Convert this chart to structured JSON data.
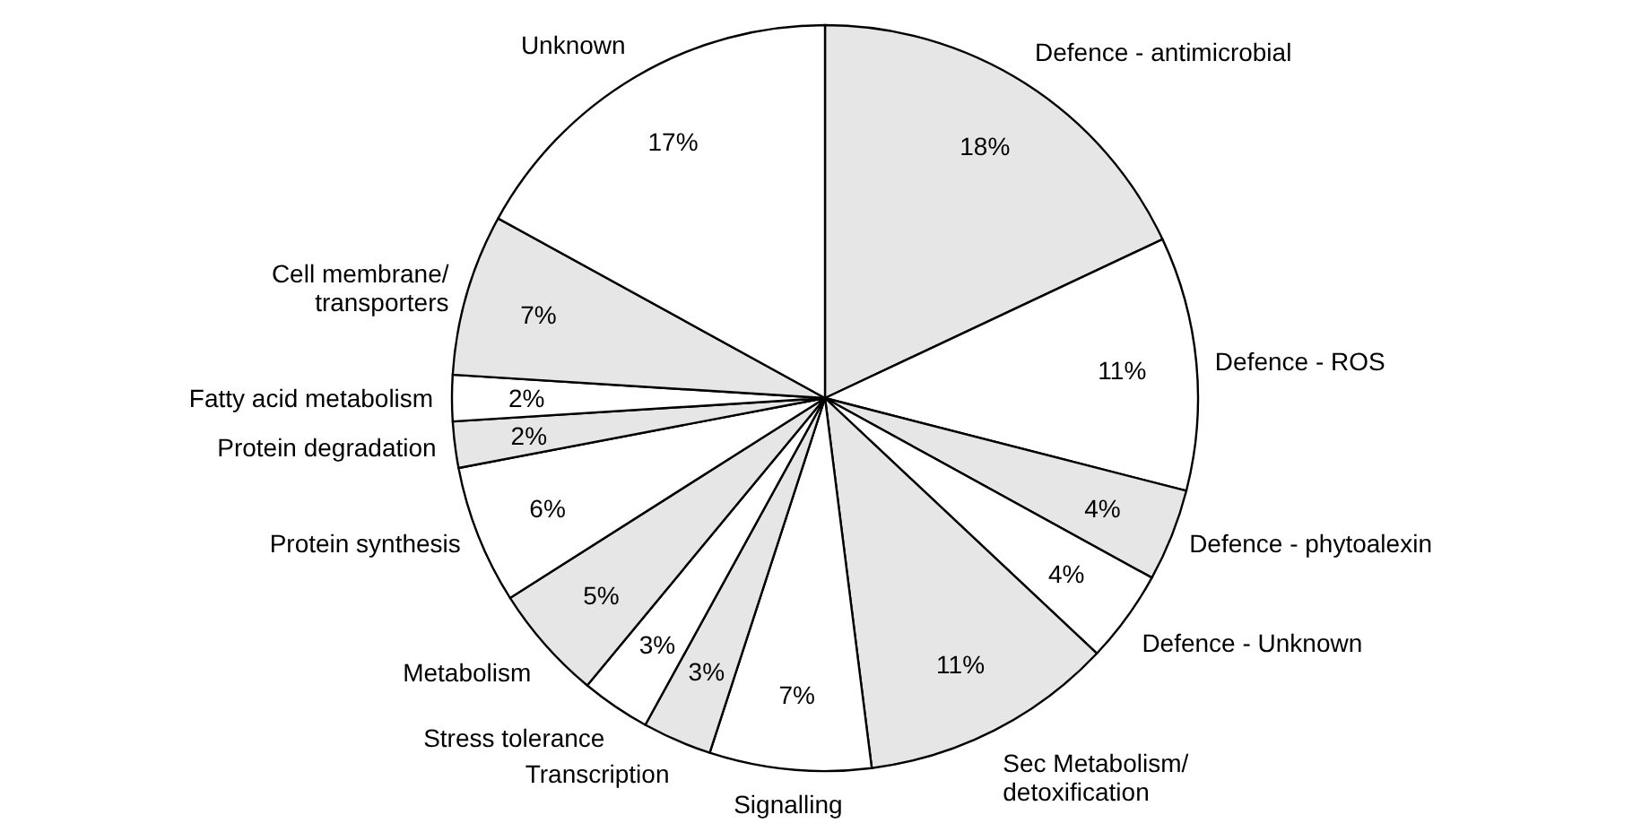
{
  "chart_data": {
    "type": "pie",
    "categories": [
      "Defence - antimicrobial",
      "Defence - ROS",
      "Defence - phytoalexin",
      "Defence - Unknown",
      "Sec Metabolism/detoxification",
      "Signalling",
      "Transcription",
      "Stress tolerance",
      "Metabolism",
      "Protein synthesis",
      "Protein degradation",
      "Fatty acid metabolism",
      "Cell membrane/transporters",
      "Unknown"
    ],
    "values": [
      18,
      11,
      4,
      4,
      11,
      7,
      3,
      3,
      5,
      6,
      2,
      2,
      7,
      17
    ],
    "value_labels": [
      "18%",
      "11%",
      "4%",
      "4%",
      "11%",
      "7%",
      "3%",
      "3%",
      "5%",
      "6%",
      "2%",
      "2%",
      "7%",
      "17%"
    ],
    "colors": [
      "#e6e6e6",
      "#ffffff",
      "#e6e6e6",
      "#ffffff",
      "#e6e6e6",
      "#ffffff",
      "#e6e6e6",
      "#ffffff",
      "#e6e6e6",
      "#ffffff",
      "#e6e6e6",
      "#ffffff",
      "#e6e6e6",
      "#ffffff"
    ]
  }
}
